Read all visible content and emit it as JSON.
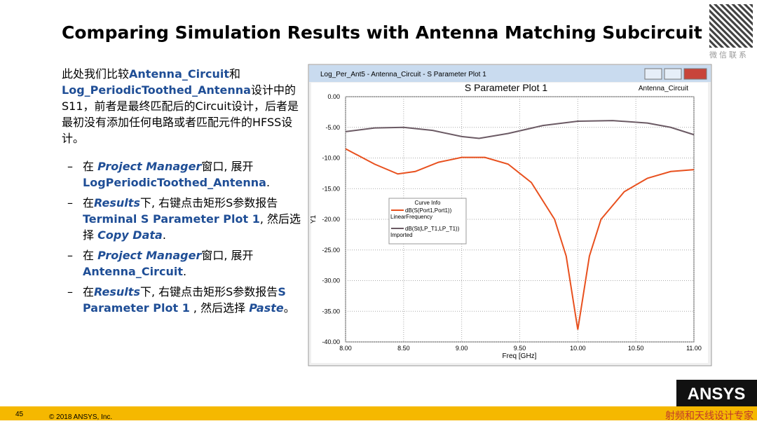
{
  "title": "Comparing Simulation Results with Antenna Matching Subcircuit",
  "qr_caption": "微信联系",
  "intro": [
    {
      "text": "此处我们比较",
      "style": "plain"
    },
    {
      "text": "Antenna_Circuit",
      "style": "bold"
    },
    {
      "text": "和",
      "style": "plain"
    },
    {
      "text": "Log_PeriodicToothed_Antenna",
      "style": "bold"
    },
    {
      "text": "设计中的S11，前者是最终匹配后的Circuit设计，后者是最初没有添加任何电路或者匹配元件的HFSS设计。",
      "style": "plain"
    }
  ],
  "bullets": [
    [
      {
        "text": "在 ",
        "style": "plain"
      },
      {
        "text": "Project Manager",
        "style": "italic"
      },
      {
        "text": "窗口, 展开 ",
        "style": "plain"
      },
      {
        "text": "LogPeriodicToothed_Antenna",
        "style": "bold"
      },
      {
        "text": ".",
        "style": "plain"
      }
    ],
    [
      {
        "text": "在",
        "style": "plain"
      },
      {
        "text": "Results",
        "style": "italic"
      },
      {
        "text": "下, 右键点击矩形S参数报告",
        "style": "plain"
      },
      {
        "text": "Terminal S Parameter Plot 1",
        "style": "bold"
      },
      {
        "text": ", 然后选择 ",
        "style": "plain"
      },
      {
        "text": "Copy Data",
        "style": "italic"
      },
      {
        "text": ".",
        "style": "plain"
      }
    ],
    [
      {
        "text": "在 ",
        "style": "plain"
      },
      {
        "text": "Project Manager",
        "style": "italic"
      },
      {
        "text": "窗口, 展开 ",
        "style": "plain"
      },
      {
        "text": "Antenna_Circuit",
        "style": "bold"
      },
      {
        "text": ".",
        "style": "plain"
      }
    ],
    [
      {
        "text": "在",
        "style": "plain"
      },
      {
        "text": "Results",
        "style": "italic"
      },
      {
        "text": "下, 右键点击矩形S参数报告",
        "style": "plain"
      },
      {
        "text": "S Parameter Plot 1",
        "style": "bold"
      },
      {
        "text": " , 然后选择 ",
        "style": "plain"
      },
      {
        "text": "Paste",
        "style": "italic"
      },
      {
        "text": "。",
        "style": "plain"
      }
    ]
  ],
  "window_title": "Log_Per_Ant5 - Antenna_Circuit - S Parameter Plot 1",
  "footer": {
    "page": "45",
    "copyright": "© 2018 ANSYS, Inc.",
    "logo": "ANSYS",
    "watermark": "射频和天线设计专家"
  },
  "chart_data": {
    "type": "line",
    "title": "S Parameter Plot 1",
    "design": "Antenna_Circuit",
    "x_label": "Freq [GHz]",
    "y_label": "Y1",
    "legend_title": "Curve Info",
    "grid": true,
    "xlim": [
      8,
      11
    ],
    "ylim": [
      -40,
      0
    ],
    "xticks": [
      {
        "value": 8,
        "label": "8.00"
      },
      {
        "value": 8.5,
        "label": "8.50"
      },
      {
        "value": 9,
        "label": "9.00"
      },
      {
        "value": 9.5,
        "label": "9.50"
      },
      {
        "value": 10,
        "label": "10.00"
      },
      {
        "value": 10.5,
        "label": "10.50"
      },
      {
        "value": 11,
        "label": "11.00"
      }
    ],
    "yticks": [
      {
        "value": 0,
        "label": "0.00"
      },
      {
        "value": -5,
        "label": "-5.00"
      },
      {
        "value": -10,
        "label": "-10.00"
      },
      {
        "value": -15,
        "label": "-15.00"
      },
      {
        "value": -20,
        "label": "-20.00"
      },
      {
        "value": -25,
        "label": "-25.00"
      },
      {
        "value": -30,
        "label": "-30.00"
      },
      {
        "value": -35,
        "label": "-35.00"
      },
      {
        "value": -40,
        "label": "-40.00"
      }
    ],
    "series": [
      {
        "name": "dB(S(Port1,Port1))",
        "source": "LinearFrequency",
        "color": "#e8501e",
        "x": [
          8.0,
          8.25,
          8.45,
          8.6,
          8.8,
          9.0,
          9.2,
          9.4,
          9.6,
          9.8,
          9.9,
          10.0,
          10.1,
          10.2,
          10.4,
          10.6,
          10.8,
          11.0
        ],
        "values": [
          -8.5,
          -11,
          -12.6,
          -12.2,
          -10.7,
          -9.9,
          -9.9,
          -11,
          -14,
          -20,
          -26,
          -38,
          -26,
          -20,
          -15.5,
          -13.3,
          -12.2,
          -11.9
        ]
      },
      {
        "name": "dB(St(LP_T1,LP_T1))",
        "source": "Imported",
        "color": "#6b5a64",
        "x": [
          8.0,
          8.25,
          8.5,
          8.75,
          9.0,
          9.15,
          9.4,
          9.7,
          10.0,
          10.3,
          10.6,
          10.8,
          11.0
        ],
        "values": [
          -5.7,
          -5.1,
          -5.0,
          -5.5,
          -6.5,
          -6.8,
          -6.0,
          -4.7,
          -4.0,
          -3.9,
          -4.3,
          -5.0,
          -6.2
        ]
      }
    ]
  }
}
